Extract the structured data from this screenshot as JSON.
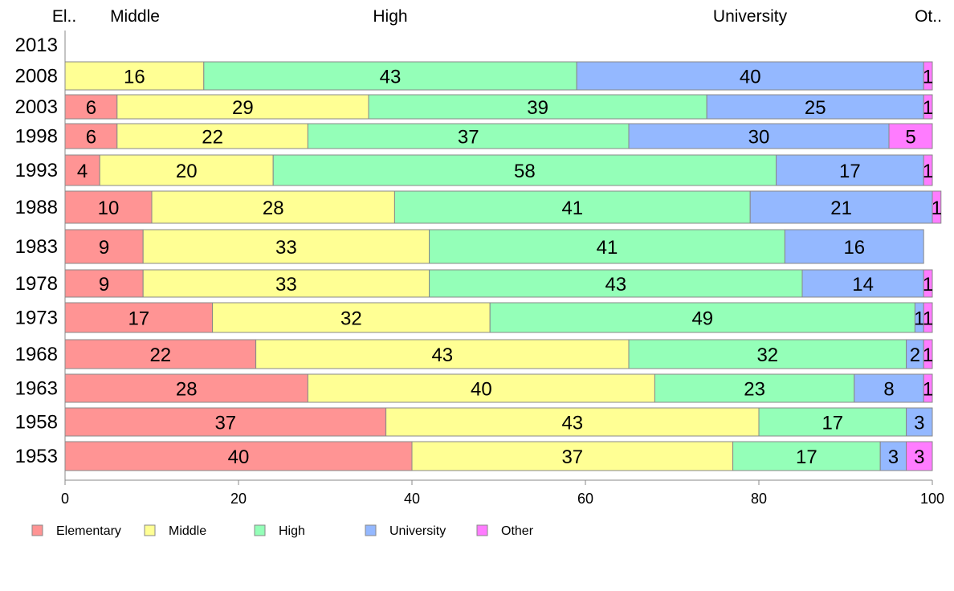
{
  "chart_data": {
    "type": "bar",
    "orientation": "horizontal",
    "stacked": true,
    "categories": [
      "2013",
      "2008",
      "2003",
      "1998",
      "1993",
      "1988",
      "1983",
      "1978",
      "1973",
      "1968",
      "1963",
      "1958",
      "1953"
    ],
    "series": [
      {
        "name": "Elementary",
        "color": "#ff9494",
        "values": [
          null,
          0,
          6,
          6,
          4,
          10,
          9,
          9,
          17,
          22,
          28,
          37,
          40
        ],
        "labels": [
          "",
          "",
          "6",
          "6",
          "4",
          "10",
          "9",
          "9",
          "17",
          "22",
          "28",
          "37",
          "40"
        ]
      },
      {
        "name": "Middle",
        "color": "#ffff94",
        "values": [
          null,
          16,
          29,
          22,
          20,
          28,
          33,
          33,
          32,
          43,
          40,
          43,
          37
        ],
        "labels": [
          "",
          "16",
          "29",
          "22",
          "20",
          "28",
          "33",
          "33",
          "32",
          "43",
          "40",
          "43",
          "37"
        ]
      },
      {
        "name": "High",
        "color": "#94ffb8",
        "values": [
          null,
          43,
          39,
          37,
          58,
          41,
          41,
          43,
          49,
          32,
          23,
          17,
          17
        ],
        "labels": [
          "",
          "43",
          "39",
          "37",
          "58",
          "41",
          "41",
          "43",
          "49",
          "32",
          "23",
          "17",
          "17"
        ]
      },
      {
        "name": "University",
        "color": "#94b8ff",
        "values": [
          null,
          40,
          25,
          30,
          17,
          21,
          16,
          14,
          1,
          2,
          8,
          3,
          3
        ],
        "labels": [
          "",
          "40",
          "25",
          "30",
          "17",
          "21",
          "16",
          "14",
          "1",
          "2",
          "8",
          "3",
          "3"
        ]
      },
      {
        "name": "Other",
        "color": "#ff7cff",
        "values": [
          null,
          1,
          1,
          5,
          1,
          1,
          0,
          1,
          1,
          1,
          1,
          0,
          3
        ],
        "labels": [
          "",
          "1",
          "1",
          "5",
          "1",
          "1",
          "",
          "1",
          "1",
          "1",
          "1",
          "",
          "3"
        ]
      }
    ],
    "top_labels": [
      "El..",
      "Middle",
      "High",
      "University",
      "Ot.."
    ],
    "xlim": [
      0,
      100
    ],
    "xticks": [
      "0",
      "20",
      "40",
      "60",
      "80",
      "100"
    ],
    "grid": false,
    "legend": "bottom-left",
    "title": "",
    "xlabel": "",
    "ylabel": ""
  }
}
